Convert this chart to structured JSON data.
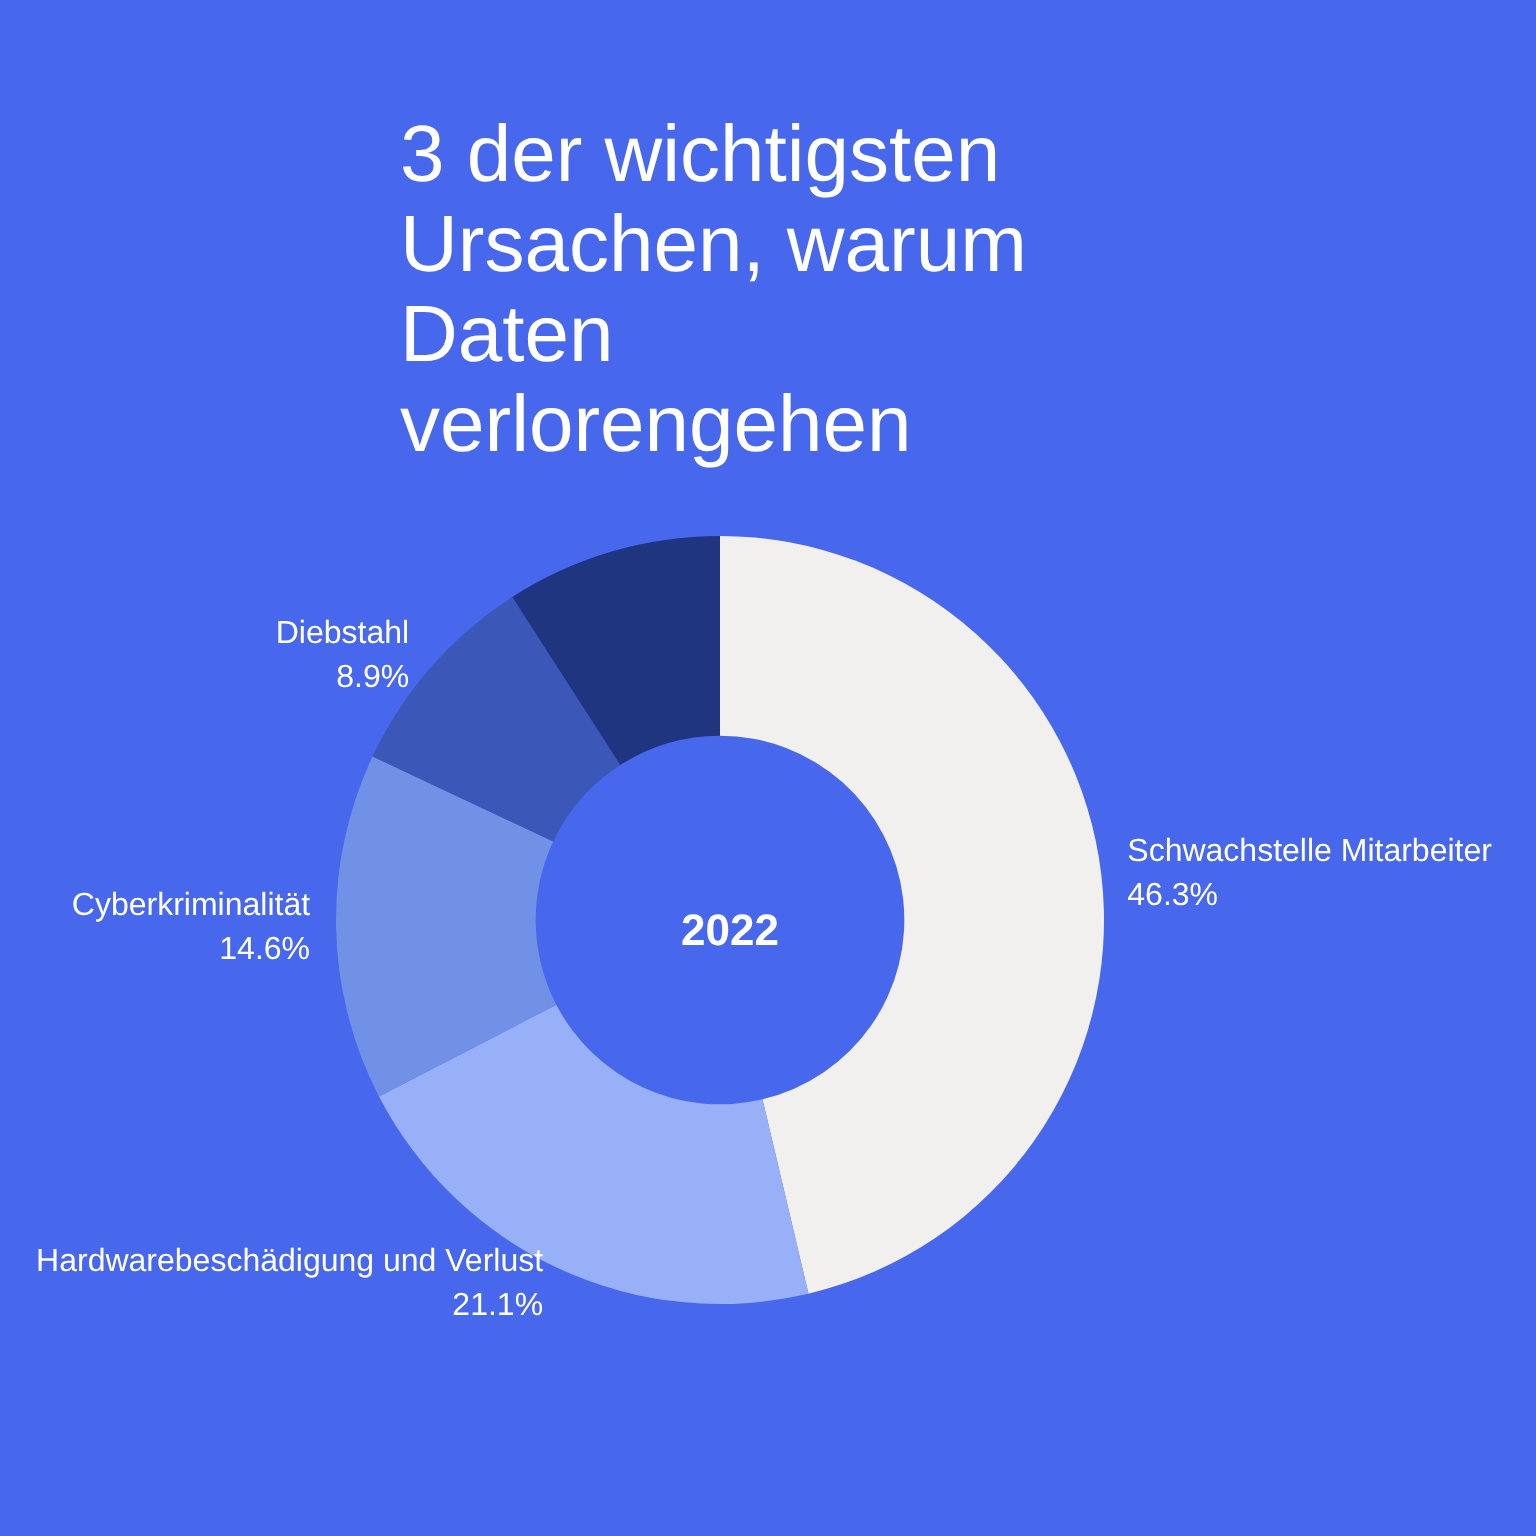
{
  "chart_data": {
    "type": "donut",
    "title": "3 der wichtigsten Ursachen, warum Daten verlorengehen",
    "categories": [
      "Schwachstelle Mitarbeiter",
      "Hardwarebeschädigung und Verlust",
      "Cyberkriminalität",
      "Diebstahl",
      null
    ],
    "values": [
      46.3,
      21.1,
      14.6,
      8.9,
      9.1
    ],
    "value_labels": [
      "46.3%",
      "21.1%",
      "14.6%",
      "8.9%",
      null
    ],
    "colors": [
      "#f1f0ee",
      "#97b0f8",
      "#7191e6",
      "#3b57b8",
      "#1f3580"
    ],
    "annotations": [
      "2022"
    ],
    "legend": false
  }
}
